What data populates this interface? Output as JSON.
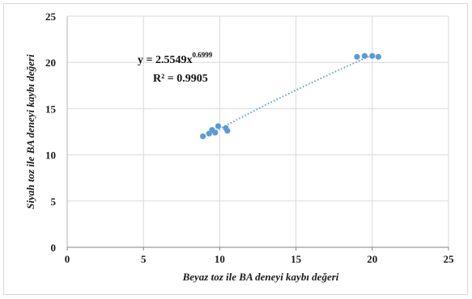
{
  "chart_data": {
    "type": "scatter",
    "xlabel": "Beyaz toz ile BA deneyi kaybı değeri",
    "ylabel": "Siyah toz ile BA deneyi kaybı değeri",
    "xlim": [
      0,
      25
    ],
    "ylim": [
      0,
      25
    ],
    "xticks": [
      "0",
      "5",
      "10",
      "15",
      "20",
      "25"
    ],
    "yticks": [
      "0",
      "5",
      "10",
      "15",
      "20",
      "25"
    ],
    "grid": true,
    "point_color": "#5b9bd5",
    "trendline": {
      "type": "power",
      "coefficient": 2.5549,
      "exponent": 0.6999,
      "x_range": [
        9.4,
        19.9
      ],
      "color": "#5b9bd5",
      "style": "dotted",
      "equation_main": "y = 2.5549x",
      "equation_exponent": "0.6999",
      "r_squared": "R² = 0.9905"
    },
    "points": [
      {
        "x": 8.9,
        "y": 12.0
      },
      {
        "x": 9.3,
        "y": 12.3
      },
      {
        "x": 9.5,
        "y": 12.7
      },
      {
        "x": 9.7,
        "y": 12.4
      },
      {
        "x": 9.9,
        "y": 13.1
      },
      {
        "x": 10.4,
        "y": 12.9
      },
      {
        "x": 10.5,
        "y": 12.6
      },
      {
        "x": 19.0,
        "y": 20.6
      },
      {
        "x": 19.5,
        "y": 20.7
      },
      {
        "x": 20.0,
        "y": 20.7
      },
      {
        "x": 20.4,
        "y": 20.6
      }
    ]
  }
}
